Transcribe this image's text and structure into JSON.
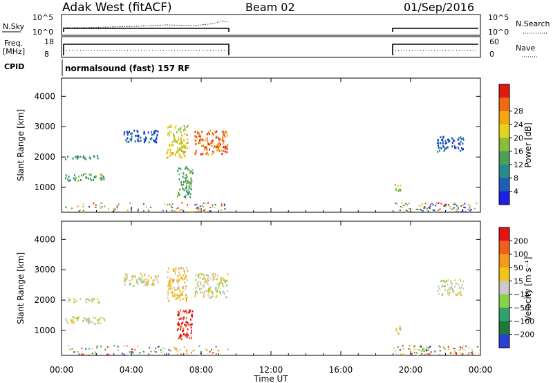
{
  "header": {
    "station": "Adak West (fitACF)",
    "beam": "Beam 02",
    "date": "01/Sep/2016"
  },
  "strip_labels": {
    "nsky": "N.Sky",
    "nsearch": "N.Search",
    "freq": "Freq.",
    "freq_unit": "[MHz]",
    "nave": "Nave",
    "cpid": "CPID",
    "cpid_text": "normalsound (fast) 157 RF",
    "noise_ticks_left": [
      "10^5",
      "10^0"
    ],
    "noise_ticks_right": [
      "10^5",
      "10^0"
    ],
    "freq_ticks": [
      "18",
      "8"
    ],
    "nave_ticks": [
      "60",
      "0"
    ]
  },
  "chart_data": [
    {
      "type": "heatmap",
      "name": "power",
      "ylabel": "Slant Range [km]",
      "xlabel": "Time UT",
      "x_ticks": [
        "00:00",
        "04:00",
        "08:00",
        "12:00",
        "16:00",
        "20:00",
        "00:00"
      ],
      "y_ticks": [
        1000,
        2000,
        3000,
        4000
      ],
      "ylim": [
        180,
        4600
      ],
      "xlim_hours": [
        0,
        24
      ],
      "colorbar": {
        "label": "Power [dB]",
        "ticks": [
          "4",
          "8",
          "12",
          "16",
          "20",
          "24",
          "28"
        ],
        "colors": [
          "#1f1fe6",
          "#1d5fb5",
          "#2a8a8a",
          "#4aa05a",
          "#8bbd3a",
          "#e7d21a",
          "#f5a514",
          "#f06a0f",
          "#e01b0b"
        ]
      },
      "echo_regions": [
        {
          "t_start": 0.2,
          "t_end": 2.2,
          "r_start": 1950,
          "r_end": 2080,
          "level": 2
        },
        {
          "t_start": 0.2,
          "t_end": 2.5,
          "r_start": 1250,
          "r_end": 1480,
          "level": 3
        },
        {
          "t_start": 3.5,
          "t_end": 5.5,
          "r_start": 2500,
          "r_end": 2900,
          "level": 1
        },
        {
          "t_start": 6.0,
          "t_end": 7.2,
          "r_start": 2000,
          "r_end": 3100,
          "level": 5
        },
        {
          "t_start": 7.6,
          "t_end": 9.5,
          "r_start": 2100,
          "r_end": 2900,
          "level": 7
        },
        {
          "t_start": 6.6,
          "t_end": 7.5,
          "r_start": 700,
          "r_end": 1700,
          "level": 3
        },
        {
          "t_start": 19.0,
          "t_end": 19.4,
          "r_start": 900,
          "r_end": 1150,
          "level": 4
        },
        {
          "t_start": 21.5,
          "t_end": 23.0,
          "r_start": 2200,
          "r_end": 2700,
          "level": 1
        }
      ]
    },
    {
      "type": "heatmap",
      "name": "velocity",
      "ylabel": "Slant Range [km]",
      "xlabel": "Time UT",
      "x_ticks": [
        "00:00",
        "04:00",
        "08:00",
        "12:00",
        "16:00",
        "20:00",
        "00:00"
      ],
      "y_ticks": [
        1000,
        2000,
        3000,
        4000
      ],
      "ylim": [
        180,
        4600
      ],
      "xlim_hours": [
        0,
        24
      ],
      "colorbar": {
        "label": "Velocity [m s⁻¹]",
        "ticks": [
          "200",
          "100",
          "50",
          "15",
          "−15",
          "−50",
          "−100",
          "−200"
        ],
        "colors": [
          "#2a3fd4",
          "#1f7a3a",
          "#2ea36a",
          "#88d24a",
          "#c9c9c9",
          "#f2c41a",
          "#f59a1a",
          "#f0601a",
          "#e31414"
        ]
      },
      "echo_regions": [
        {
          "t_start": 0.2,
          "t_end": 2.2,
          "r_start": 1950,
          "r_end": 2080,
          "level": 4
        },
        {
          "t_start": 0.2,
          "t_end": 2.5,
          "r_start": 1250,
          "r_end": 1480,
          "level": 4
        },
        {
          "t_start": 3.5,
          "t_end": 5.5,
          "r_start": 2500,
          "r_end": 2900,
          "level": 4
        },
        {
          "t_start": 6.0,
          "t_end": 7.2,
          "r_start": 2000,
          "r_end": 3100,
          "level": 5
        },
        {
          "t_start": 7.6,
          "t_end": 9.5,
          "r_start": 2100,
          "r_end": 2900,
          "level": 4
        },
        {
          "t_start": 6.6,
          "t_end": 7.5,
          "r_start": 700,
          "r_end": 1700,
          "level": 8
        },
        {
          "t_start": 19.0,
          "t_end": 19.4,
          "r_start": 900,
          "r_end": 1150,
          "level": 4
        },
        {
          "t_start": 21.5,
          "t_end": 23.0,
          "r_start": 2200,
          "r_end": 2700,
          "level": 4
        }
      ]
    }
  ],
  "data_gap_hours": [
    9.5,
    19.0
  ]
}
